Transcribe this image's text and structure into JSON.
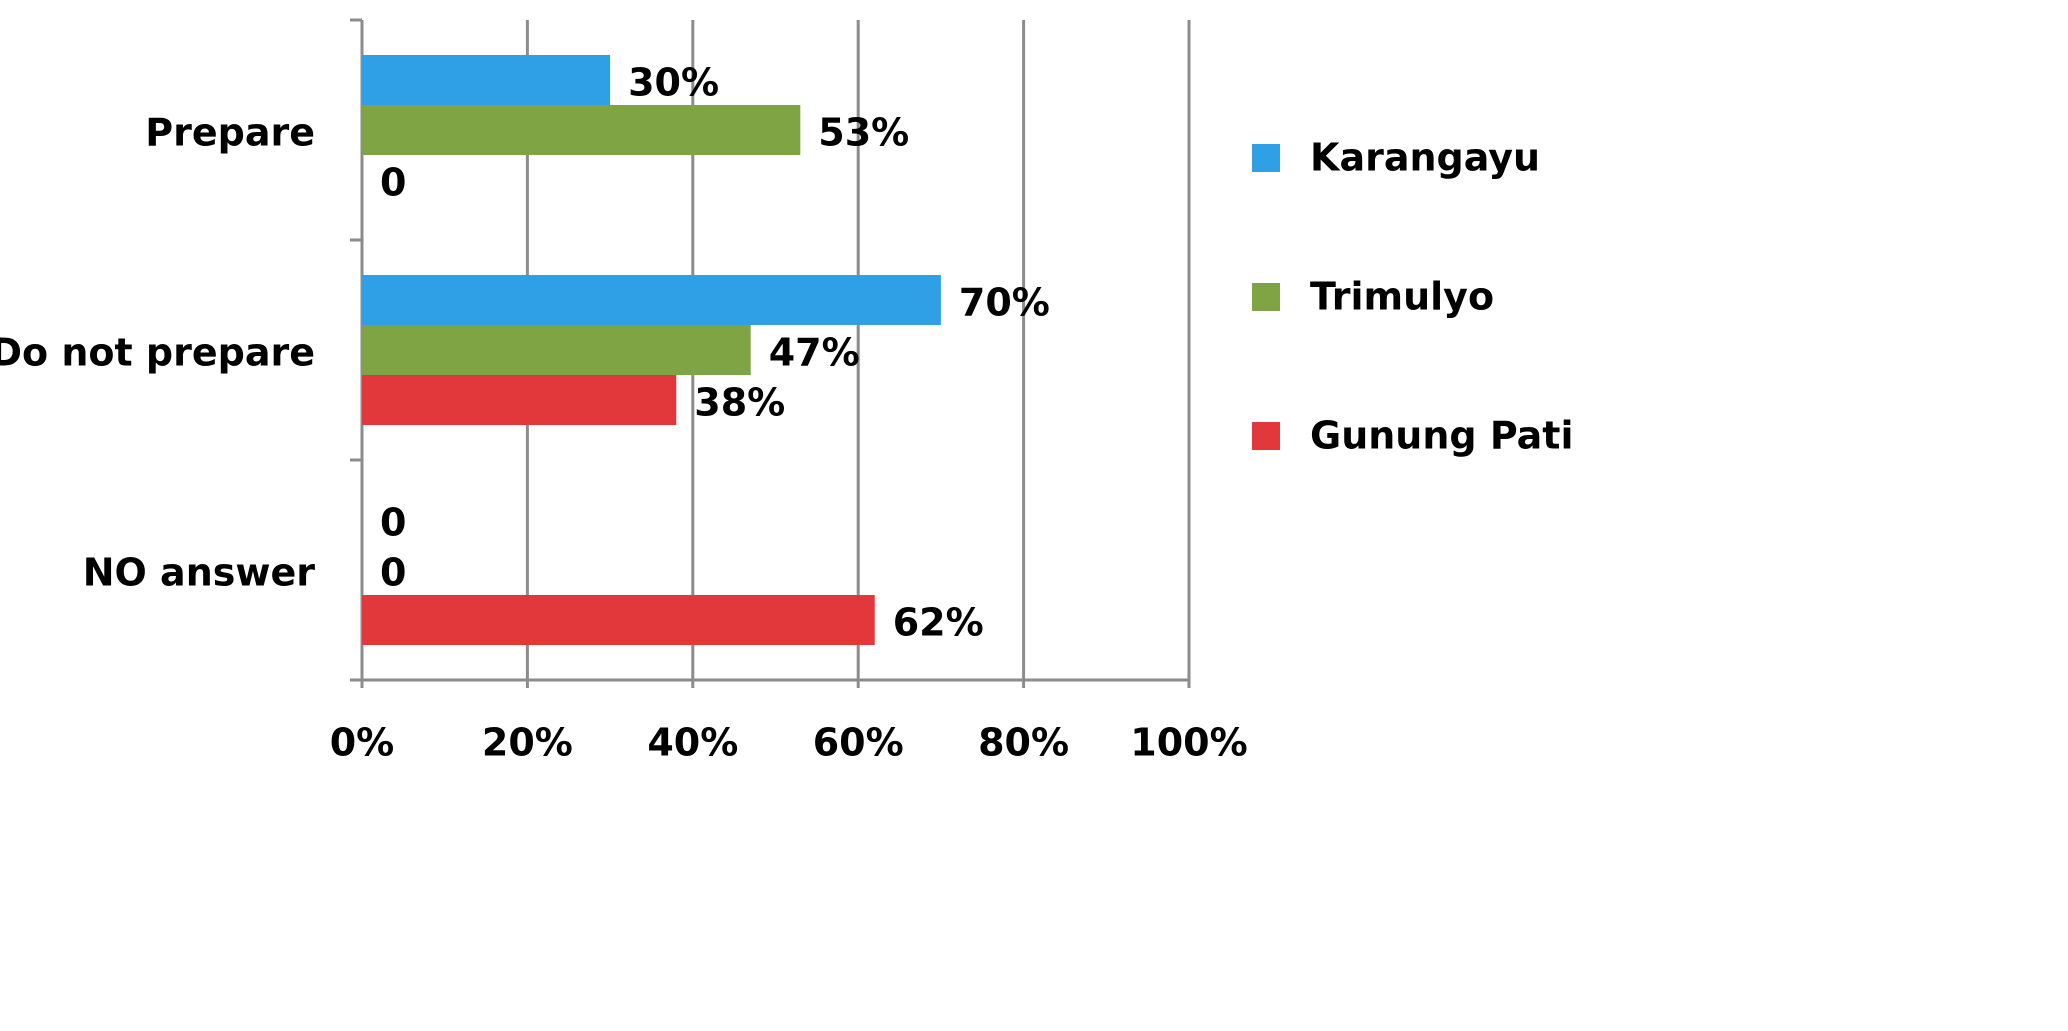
{
  "chart_data": {
    "type": "bar",
    "orientation": "horizontal",
    "categories": [
      "Prepare",
      "Do not prepare",
      "NO answer"
    ],
    "series": [
      {
        "name": "Karangayu",
        "color": "#2fa0e6",
        "values": [
          30,
          70,
          0
        ],
        "value_labels": [
          "30%",
          "70%",
          "0"
        ]
      },
      {
        "name": "Trimulyo",
        "color": "#7ea443",
        "values": [
          53,
          47,
          0
        ],
        "value_labels": [
          "53%",
          "47%",
          "0"
        ]
      },
      {
        "name": "Gunung Pati",
        "color": "#e2383b",
        "values": [
          0,
          38,
          62
        ],
        "value_labels": [
          "0",
          "38%",
          "62%"
        ]
      }
    ],
    "xlim": [
      0,
      100
    ],
    "xticks": [
      {
        "value": 0,
        "label": "0%"
      },
      {
        "value": 20,
        "label": "20%"
      },
      {
        "value": 40,
        "label": "40%"
      },
      {
        "value": 60,
        "label": "60%"
      },
      {
        "value": 80,
        "label": "80%"
      },
      {
        "value": 100,
        "label": "100%"
      }
    ],
    "grid": true,
    "legend": "right"
  }
}
